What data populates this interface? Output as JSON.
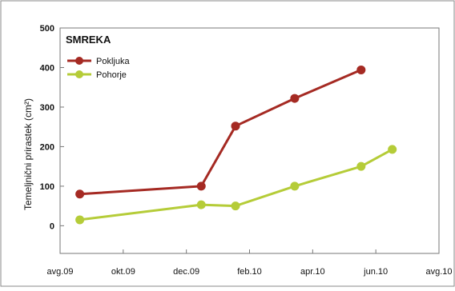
{
  "chart_data": {
    "type": "line",
    "title": "SMREKA",
    "xlabel": "",
    "ylabel": "Temeljnični prirastek (cm²)",
    "x_ticks": [
      "avg.09",
      "okt.09",
      "dec.09",
      "feb.10",
      "apr.10",
      "jun.10",
      "avg.10"
    ],
    "x_range": [
      "2009-08-01",
      "2010-08-01"
    ],
    "ylim": [
      -70,
      500
    ],
    "y_ticks": [
      0,
      100,
      200,
      300,
      400,
      500
    ],
    "grid": false,
    "legend_position": "top-left",
    "series": [
      {
        "name": "Pokljuka",
        "color": "#a52a23",
        "points": [
          {
            "x": "2009-08-20",
            "y": 80
          },
          {
            "x": "2009-12-15",
            "y": 100
          },
          {
            "x": "2010-01-17",
            "y": 252
          },
          {
            "x": "2010-03-15",
            "y": 322
          },
          {
            "x": "2010-05-18",
            "y": 394
          }
        ]
      },
      {
        "name": "Pohorje",
        "color": "#b5cc38",
        "points": [
          {
            "x": "2009-08-20",
            "y": 15
          },
          {
            "x": "2009-12-15",
            "y": 53
          },
          {
            "x": "2010-01-17",
            "y": 50
          },
          {
            "x": "2010-03-15",
            "y": 100
          },
          {
            "x": "2010-05-18",
            "y": 150
          },
          {
            "x": "2010-06-17",
            "y": 193
          }
        ]
      }
    ]
  }
}
